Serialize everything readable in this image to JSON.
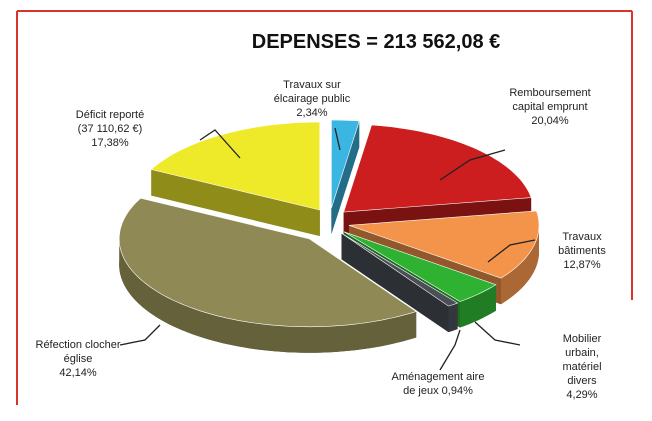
{
  "chart_data": {
    "type": "pie",
    "title": "DEPENSES = 213 562,08 €",
    "categories": [
      "Travaux sur\nélcairage public",
      "Remboursement\ncapital emprunt",
      "Travaux bâtiments",
      "Mobilier urbain,\nmatériel divers",
      "Aménagement aire\nde jeux",
      "Réfection clocher\néglise",
      "Déficit reporté\n(37 110,62 €)"
    ],
    "values": [
      2.34,
      20.04,
      12.87,
      4.29,
      0.94,
      42.14,
      17.38
    ],
    "value_labels": [
      "2,34%",
      "20,04%",
      "12,87%",
      "4,29%",
      "0,94%",
      "42,14%",
      "17,38%"
    ],
    "colors": [
      "#3bb6e3",
      "#cc1e1e",
      "#f4934a",
      "#2fb232",
      "#4a4f57",
      "#8f8a55",
      "#eeea2a"
    ]
  }
}
